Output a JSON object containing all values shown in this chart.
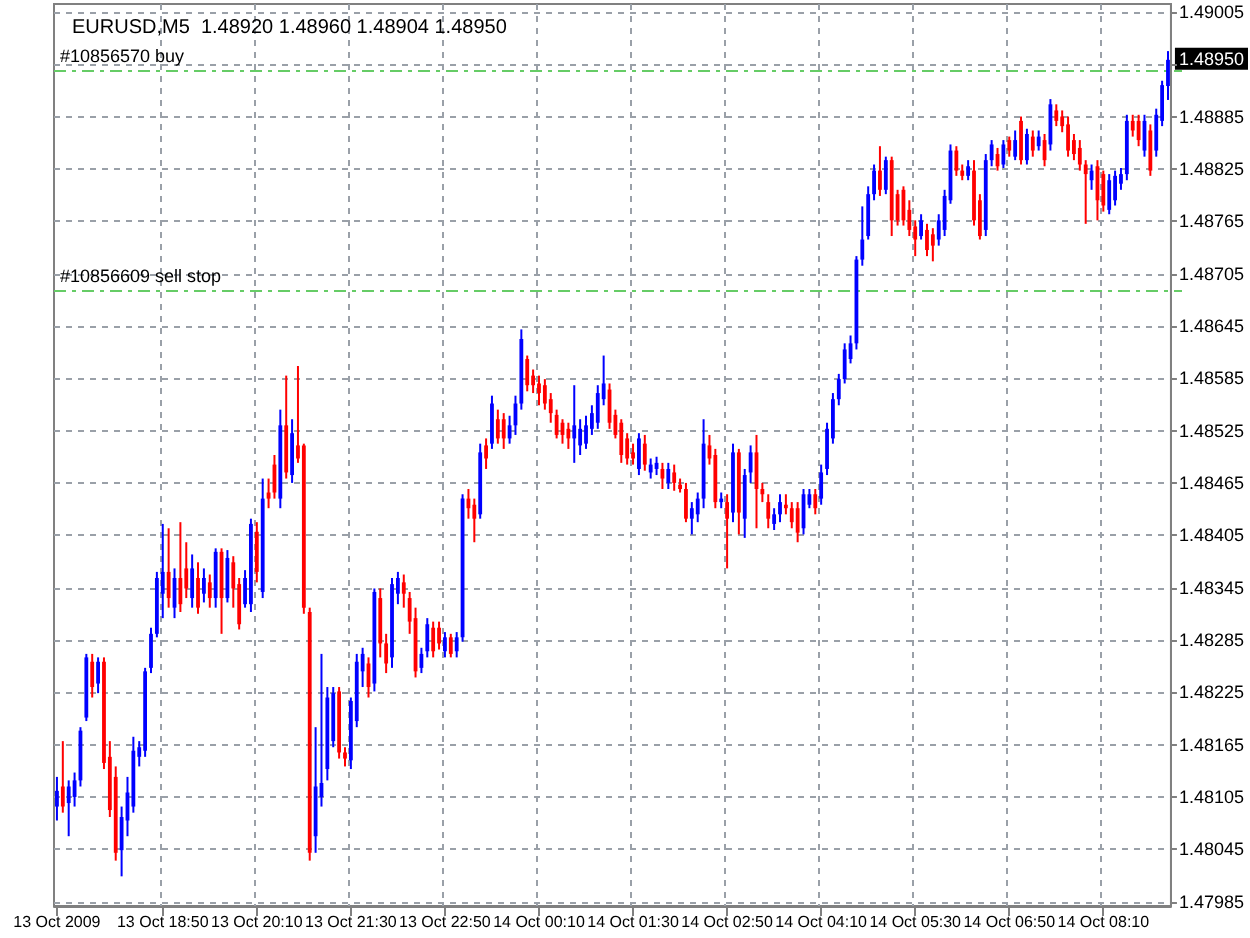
{
  "chart_data": {
    "type": "candlestick",
    "title": "EURUSD,M5  1.48920 1.48960 1.48904 1.48950",
    "categories": [
      "13 Oct 2009",
      null,
      null,
      null,
      null,
      null,
      null,
      null,
      null,
      null,
      null,
      null,
      null,
      null,
      null,
      null,
      null,
      null,
      "13 Oct 18:50",
      null,
      null,
      null,
      null,
      null,
      null,
      null,
      null,
      null,
      null,
      null,
      null,
      null,
      null,
      null,
      "13 Oct 20:10",
      null,
      null,
      null,
      null,
      null,
      null,
      null,
      null,
      null,
      null,
      null,
      null,
      null,
      null,
      null,
      "13 Oct 21:30",
      null,
      null,
      null,
      null,
      null,
      null,
      null,
      null,
      null,
      null,
      null,
      null,
      null,
      null,
      null,
      "13 Oct 22:50",
      null,
      null,
      null,
      null,
      null,
      null,
      null,
      null,
      null,
      null,
      null,
      null,
      null,
      null,
      null,
      "14 Oct 00:10",
      null,
      null,
      null,
      null,
      null,
      null,
      null,
      null,
      null,
      null,
      null,
      null,
      null,
      null,
      null,
      "14 Oct 01:30",
      null,
      null,
      null,
      null,
      null,
      null,
      null,
      null,
      null,
      null,
      null,
      null,
      null,
      null,
      null,
      "14 Oct 02:50",
      null,
      null,
      null,
      null,
      null,
      null,
      null,
      null,
      null,
      null,
      null,
      null,
      null,
      null,
      null,
      "14 Oct 04:10",
      null,
      null,
      null,
      null,
      null,
      null,
      null,
      null,
      null,
      null,
      null,
      null,
      null,
      null,
      null,
      "14 Oct 05:30",
      null,
      null,
      null,
      null,
      null,
      null,
      null,
      null,
      null,
      null,
      null,
      null,
      null,
      null,
      null,
      "14 Oct 06:50",
      null,
      null,
      null,
      null,
      null,
      null,
      null,
      null,
      null,
      null,
      null,
      null,
      null,
      null,
      null,
      "14 Oct 08:10",
      null,
      null,
      null,
      null,
      null,
      null,
      null,
      null,
      null,
      null,
      null
    ],
    "ohlc": [
      [
        1.48094,
        1.48128,
        1.48078,
        1.48112
      ],
      [
        1.48117,
        1.48169,
        1.48087,
        1.48094
      ],
      [
        1.48098,
        1.48124,
        1.4806,
        1.48117
      ],
      [
        1.48105,
        1.48133,
        1.48094,
        1.48124
      ],
      [
        1.48124,
        1.48185,
        1.48117,
        1.48181
      ],
      [
        1.48196,
        1.48269,
        1.48192,
        1.48265
      ],
      [
        1.4826,
        1.48269,
        1.48219,
        1.48231
      ],
      [
        1.48235,
        1.48265,
        1.48224,
        1.4826
      ],
      [
        1.4826,
        1.48265,
        1.48137,
        1.48144
      ],
      [
        1.48151,
        1.48169,
        1.48082,
        1.4809
      ],
      [
        1.48128,
        1.4814,
        1.48032,
        1.48041
      ],
      [
        1.48044,
        1.48094,
        1.48014,
        1.48082
      ],
      [
        1.48078,
        1.48128,
        1.4806,
        1.4811
      ],
      [
        1.48094,
        1.48174,
        1.48087,
        1.48158
      ],
      [
        1.48151,
        1.48169,
        1.4814,
        1.48162
      ],
      [
        1.48158,
        1.48253,
        1.48151,
        1.48249
      ],
      [
        1.48253,
        1.48299,
        1.48247,
        1.48292
      ],
      [
        1.48292,
        1.48363,
        1.48288,
        1.48356
      ],
      [
        1.48338,
        1.48418,
        1.4831,
        1.48363
      ],
      [
        1.48363,
        1.48413,
        1.48322,
        1.48333
      ],
      [
        1.48322,
        1.48367,
        1.4831,
        1.48356
      ],
      [
        1.48356,
        1.4842,
        1.48317,
        1.48326
      ],
      [
        1.48367,
        1.48397,
        1.48333,
        1.48344
      ],
      [
        1.48333,
        1.48383,
        1.48322,
        1.48367
      ],
      [
        1.48356,
        1.48374,
        1.48315,
        1.48322
      ],
      [
        1.48338,
        1.48367,
        1.48328,
        1.48356
      ],
      [
        1.48351,
        1.4836,
        1.48322,
        1.48333
      ],
      [
        1.48333,
        1.4839,
        1.48322,
        1.48386
      ],
      [
        1.48386,
        1.4839,
        1.48292,
        1.48333
      ],
      [
        1.48333,
        1.48388,
        1.48328,
        1.48379
      ],
      [
        1.48374,
        1.48381,
        1.48322,
        1.48344
      ],
      [
        1.48349,
        1.48356,
        1.48297,
        1.48303
      ],
      [
        1.48326,
        1.48365,
        1.48322,
        1.48356
      ],
      [
        1.48326,
        1.48424,
        1.48317,
        1.48418
      ],
      [
        1.48409,
        1.4842,
        1.48351,
        1.48363
      ],
      [
        1.4834,
        1.4847,
        1.48333,
        1.48447
      ],
      [
        1.48454,
        1.4847,
        1.48436,
        1.48447
      ],
      [
        1.48486,
        1.48497,
        1.48447,
        1.48454
      ],
      [
        1.48447,
        1.48549,
        1.48436,
        1.48531
      ],
      [
        1.48531,
        1.48588,
        1.4847,
        1.48477
      ],
      [
        1.48474,
        1.48538,
        1.48465,
        1.48522
      ],
      [
        1.48508,
        1.48599,
        1.48488,
        1.48493
      ],
      [
        1.48508,
        1.4851,
        1.48315,
        1.48322
      ],
      [
        1.48317,
        1.48322,
        1.48032,
        1.48041
      ],
      [
        1.4806,
        1.48185,
        1.48041,
        1.48117
      ],
      [
        1.48105,
        1.48269,
        1.48094,
        1.48121
      ],
      [
        1.48137,
        1.48231,
        1.48124,
        1.48219
      ],
      [
        1.48169,
        1.48231,
        1.48162,
        1.48224
      ],
      [
        1.48226,
        1.48231,
        1.48149,
        1.48156
      ],
      [
        1.48156,
        1.48162,
        1.4814,
        1.48149
      ],
      [
        1.48147,
        1.48219,
        1.48137,
        1.48215
      ],
      [
        1.48192,
        1.48269,
        1.48185,
        1.4826
      ],
      [
        1.48249,
        1.48276,
        1.48231,
        1.48269
      ],
      [
        1.48258,
        1.48265,
        1.48219,
        1.48231
      ],
      [
        1.48235,
        1.48344,
        1.48226,
        1.4834
      ],
      [
        1.48333,
        1.48344,
        1.48265,
        1.48281
      ],
      [
        1.48281,
        1.48292,
        1.48247,
        1.48258
      ],
      [
        1.48265,
        1.48356,
        1.48253,
        1.48349
      ],
      [
        1.48338,
        1.48363,
        1.48326,
        1.48356
      ],
      [
        1.48351,
        1.4836,
        1.48322,
        1.48338
      ],
      [
        1.48333,
        1.4834,
        1.48292,
        1.48306
      ],
      [
        1.4831,
        1.48322,
        1.48242,
        1.48249
      ],
      [
        1.48253,
        1.48276,
        1.48247,
        1.48269
      ],
      [
        1.48272,
        1.4831,
        1.48265,
        1.48303
      ],
      [
        1.48299,
        1.48306,
        1.48265,
        1.48272
      ],
      [
        1.48299,
        1.48306,
        1.48274,
        1.48281
      ],
      [
        1.48272,
        1.48294,
        1.48265,
        1.48288
      ],
      [
        1.48288,
        1.48292,
        1.48265,
        1.48269
      ],
      [
        1.48272,
        1.48294,
        1.48265,
        1.48288
      ],
      [
        1.48288,
        1.48452,
        1.48283,
        1.48447
      ],
      [
        1.48447,
        1.48458,
        1.48424,
        1.48436
      ],
      [
        1.4844,
        1.48447,
        1.48397,
        1.48424
      ],
      [
        1.48429,
        1.4851,
        1.48424,
        1.485
      ],
      [
        1.48508,
        1.48516,
        1.48481,
        1.48493
      ],
      [
        1.4851,
        1.48565,
        1.48504,
        1.48556
      ],
      [
        1.48538,
        1.48549,
        1.4851,
        1.48516
      ],
      [
        1.48538,
        1.48545,
        1.48504,
        1.48516
      ],
      [
        1.48516,
        1.48542,
        1.4851,
        1.48531
      ],
      [
        1.48531,
        1.48565,
        1.4852,
        1.48556
      ],
      [
        1.48556,
        1.48641,
        1.48549,
        1.4863
      ],
      [
        1.48607,
        1.48611,
        1.4857,
        1.48577
      ],
      [
        1.48588,
        1.48595,
        1.48568,
        1.48577
      ],
      [
        1.48579,
        1.48588,
        1.48554,
        1.48568
      ],
      [
        1.48577,
        1.48584,
        1.48549,
        1.48556
      ],
      [
        1.48561,
        1.48568,
        1.48534,
        1.48545
      ],
      [
        1.48543,
        1.48549,
        1.48516,
        1.4852
      ],
      [
        1.48534,
        1.48538,
        1.4851,
        1.4852
      ],
      [
        1.48527,
        1.48534,
        1.48504,
        1.48516
      ],
      [
        1.48516,
        1.48577,
        1.48488,
        1.48531
      ],
      [
        1.48508,
        1.48538,
        1.48497,
        1.48527
      ],
      [
        1.4851,
        1.48542,
        1.48504,
        1.48531
      ],
      [
        1.48527,
        1.48554,
        1.4852,
        1.48545
      ],
      [
        1.48534,
        1.48577,
        1.48527,
        1.48568
      ],
      [
        1.48561,
        1.48611,
        1.48554,
        1.48579
      ],
      [
        1.48572,
        1.48579,
        1.48527,
        1.48534
      ],
      [
        1.48543,
        1.48549,
        1.48516,
        1.4852
      ],
      [
        1.48534,
        1.48538,
        1.48488,
        1.48497
      ],
      [
        1.48516,
        1.48522,
        1.48486,
        1.48493
      ],
      [
        1.485,
        1.4851,
        1.48486,
        1.48493
      ],
      [
        1.48481,
        1.48522,
        1.48474,
        1.48516
      ],
      [
        1.4851,
        1.4852,
        1.48479,
        1.48486
      ],
      [
        1.48477,
        1.48493,
        1.4847,
        1.48486
      ],
      [
        1.48481,
        1.48495,
        1.48474,
        1.48488
      ],
      [
        1.48481,
        1.48488,
        1.48458,
        1.4847
      ],
      [
        1.48465,
        1.48488,
        1.48458,
        1.48481
      ],
      [
        1.48477,
        1.48486,
        1.48456,
        1.48465
      ],
      [
        1.48463,
        1.4847,
        1.48454,
        1.48458
      ],
      [
        1.48458,
        1.48465,
        1.4842,
        1.48424
      ],
      [
        1.48424,
        1.48443,
        1.48406,
        1.48436
      ],
      [
        1.48429,
        1.48454,
        1.4842,
        1.48447
      ],
      [
        1.48447,
        1.48538,
        1.48436,
        1.4851
      ],
      [
        1.48508,
        1.4852,
        1.48486,
        1.48493
      ],
      [
        1.48497,
        1.48504,
        1.48436,
        1.48443
      ],
      [
        1.48443,
        1.48454,
        1.48436,
        1.48447
      ],
      [
        1.48443,
        1.48452,
        1.48367,
        1.48424
      ],
      [
        1.48431,
        1.4851,
        1.4842,
        1.485
      ],
      [
        1.485,
        1.48504,
        1.48406,
        1.48431
      ],
      [
        1.48424,
        1.48481,
        1.48402,
        1.48474
      ],
      [
        1.48477,
        1.48508,
        1.48465,
        1.485
      ],
      [
        1.485,
        1.4852,
        1.48413,
        1.48458
      ],
      [
        1.48458,
        1.48465,
        1.48443,
        1.48452
      ],
      [
        1.48443,
        1.48452,
        1.48413,
        1.48424
      ],
      [
        1.48418,
        1.48436,
        1.48411,
        1.48429
      ],
      [
        1.48429,
        1.48452,
        1.4842,
        1.48443
      ],
      [
        1.4844,
        1.48452,
        1.48429,
        1.48436
      ],
      [
        1.48436,
        1.48443,
        1.48413,
        1.4842
      ],
      [
        1.48436,
        1.48443,
        1.48397,
        1.48408
      ],
      [
        1.48413,
        1.48458,
        1.48406,
        1.48452
      ],
      [
        1.4844,
        1.48458,
        1.48436,
        1.48452
      ],
      [
        1.48452,
        1.48458,
        1.48429,
        1.48436
      ],
      [
        1.48447,
        1.48486,
        1.4844,
        1.48477
      ],
      [
        1.48481,
        1.48534,
        1.48474,
        1.48527
      ],
      [
        1.48516,
        1.48568,
        1.4851,
        1.48561
      ],
      [
        1.48561,
        1.4859,
        1.48554,
        1.48584
      ],
      [
        1.48584,
        1.48625,
        1.48579,
        1.48618
      ],
      [
        1.48607,
        1.48634,
        1.48602,
        1.48625
      ],
      [
        1.48625,
        1.48725,
        1.48618,
        1.48721
      ],
      [
        1.48721,
        1.48782,
        1.48714,
        1.48744
      ],
      [
        1.48748,
        1.48805,
        1.48744,
        1.48796
      ],
      [
        1.48796,
        1.4883,
        1.48789,
        1.48823
      ],
      [
        1.48823,
        1.48851,
        1.48794,
        1.48801
      ],
      [
        1.48801,
        1.48839,
        1.48796,
        1.48835
      ],
      [
        1.48835,
        1.48839,
        1.48748,
        1.48766
      ],
      [
        1.48796,
        1.48801,
        1.4876,
        1.48766
      ],
      [
        1.48801,
        1.48805,
        1.4876,
        1.48766
      ],
      [
        1.48778,
        1.48789,
        1.48748,
        1.48755
      ],
      [
        1.48759,
        1.48766,
        1.48725,
        1.48744
      ],
      [
        1.48748,
        1.48773,
        1.48744,
        1.48766
      ],
      [
        1.48755,
        1.48762,
        1.48725,
        1.48732
      ],
      [
        1.4875,
        1.48757,
        1.48719,
        1.48737
      ],
      [
        1.48744,
        1.48773,
        1.48737,
        1.48766
      ],
      [
        1.48755,
        1.48801,
        1.48748,
        1.48794
      ],
      [
        1.48789,
        1.48853,
        1.48785,
        1.48846
      ],
      [
        1.48846,
        1.48851,
        1.48817,
        1.48823
      ],
      [
        1.48823,
        1.4883,
        1.48812,
        1.48817
      ],
      [
        1.48817,
        1.48835,
        1.48812,
        1.48828
      ],
      [
        1.48823,
        1.48835,
        1.4876,
        1.48766
      ],
      [
        1.48789,
        1.48796,
        1.48744,
        1.48748
      ],
      [
        1.48755,
        1.48842,
        1.48748,
        1.48835
      ],
      [
        1.48835,
        1.48858,
        1.48828,
        1.48853
      ],
      [
        1.48842,
        1.48849,
        1.48823,
        1.48828
      ],
      [
        1.4883,
        1.48858,
        1.48826,
        1.48853
      ],
      [
        1.48858,
        1.48862,
        1.48839,
        1.48846
      ],
      [
        1.48839,
        1.48869,
        1.48835,
        1.48858
      ],
      [
        1.4888,
        1.48885,
        1.4883,
        1.48835
      ],
      [
        1.48835,
        1.48871,
        1.4883,
        1.48865
      ],
      [
        1.48862,
        1.48869,
        1.48839,
        1.48846
      ],
      [
        1.48851,
        1.48869,
        1.48846,
        1.48862
      ],
      [
        1.48858,
        1.48865,
        1.48828,
        1.48835
      ],
      [
        1.48853,
        1.48905,
        1.48846,
        1.48899
      ],
      [
        1.48892,
        1.48899,
        1.48874,
        1.4888
      ],
      [
        1.48885,
        1.48892,
        1.48867,
        1.48874
      ],
      [
        1.48876,
        1.48885,
        1.48839,
        1.48846
      ],
      [
        1.48858,
        1.48865,
        1.48835,
        1.48842
      ],
      [
        1.48849,
        1.48858,
        1.48823,
        1.4883
      ],
      [
        1.4883,
        1.48835,
        1.48762,
        1.48819
      ],
      [
        1.48812,
        1.4883,
        1.48801,
        1.48823
      ],
      [
        1.48828,
        1.48835,
        1.48766,
        1.48789
      ],
      [
        1.48819,
        1.48823,
        1.48776,
        1.48783
      ],
      [
        1.48778,
        1.48819,
        1.48773,
        1.48812
      ],
      [
        1.48789,
        1.48823,
        1.48783,
        1.48817
      ],
      [
        1.48808,
        1.48826,
        1.48801,
        1.48819
      ],
      [
        1.48819,
        1.48887,
        1.48812,
        1.4888
      ],
      [
        1.4888,
        1.48887,
        1.48862,
        1.48869
      ],
      [
        1.4888,
        1.48887,
        1.48851,
        1.48858
      ],
      [
        1.48846,
        1.48887,
        1.48839,
        1.4888
      ],
      [
        1.48869,
        1.48876,
        1.48817,
        1.48823
      ],
      [
        1.48846,
        1.48894,
        1.48839,
        1.48887
      ],
      [
        1.4888,
        1.48926,
        1.48874,
        1.48921
      ],
      [
        1.4892,
        1.4896,
        1.48904,
        1.4895
      ]
    ],
    "colors": [
      "#0000ff",
      "#ff0000",
      "#0000ff",
      "#0000ff",
      "#0000ff",
      "#0000ff",
      "#ff0000",
      "#0000ff",
      "#ff0000",
      "#ff0000",
      "#ff0000",
      "#0000ff",
      "#0000ff",
      "#0000ff",
      "#0000ff",
      "#0000ff",
      "#0000ff",
      "#0000ff",
      "#0000ff",
      "#ff0000",
      "#0000ff",
      "#ff0000",
      "#ff0000",
      "#0000ff",
      "#ff0000",
      "#0000ff",
      "#ff0000",
      "#0000ff",
      "#ff0000",
      "#0000ff",
      "#ff0000",
      "#ff0000",
      "#0000ff",
      "#0000ff",
      "#ff0000",
      "#0000ff",
      "#ff0000",
      "#ff0000",
      "#0000ff",
      "#ff0000",
      "#0000ff",
      "#ff0000",
      "#ff0000",
      "#ff0000",
      "#0000ff",
      "#0000ff",
      "#0000ff",
      "#0000ff",
      "#ff0000",
      "#ff0000",
      "#0000ff",
      "#0000ff",
      "#0000ff",
      "#ff0000",
      "#0000ff",
      "#ff0000",
      "#ff0000",
      "#0000ff",
      "#0000ff",
      "#ff0000",
      "#ff0000",
      "#ff0000",
      "#0000ff",
      "#0000ff",
      "#ff0000",
      "#ff0000",
      "#0000ff",
      "#ff0000",
      "#0000ff",
      "#0000ff",
      "#ff0000",
      "#ff0000",
      "#0000ff",
      "#ff0000",
      "#0000ff",
      "#ff0000",
      "#ff0000",
      "#0000ff",
      "#0000ff",
      "#0000ff",
      "#ff0000",
      "#ff0000",
      "#ff0000",
      "#ff0000",
      "#ff0000",
      "#ff0000",
      "#ff0000",
      "#ff0000",
      "#0000ff",
      "#0000ff",
      "#0000ff",
      "#0000ff",
      "#0000ff",
      "#0000ff",
      "#ff0000",
      "#ff0000",
      "#ff0000",
      "#ff0000",
      "#ff0000",
      "#0000ff",
      "#ff0000",
      "#0000ff",
      "#0000ff",
      "#ff0000",
      "#0000ff",
      "#ff0000",
      "#ff0000",
      "#ff0000",
      "#0000ff",
      "#0000ff",
      "#0000ff",
      "#ff0000",
      "#ff0000",
      "#0000ff",
      "#ff0000",
      "#0000ff",
      "#ff0000",
      "#0000ff",
      "#0000ff",
      "#ff0000",
      "#ff0000",
      "#ff0000",
      "#0000ff",
      "#0000ff",
      "#ff0000",
      "#ff0000",
      "#ff0000",
      "#0000ff",
      "#0000ff",
      "#ff0000",
      "#0000ff",
      "#0000ff",
      "#0000ff",
      "#0000ff",
      "#0000ff",
      "#0000ff",
      "#0000ff",
      "#0000ff",
      "#0000ff",
      "#0000ff",
      "#ff0000",
      "#0000ff",
      "#ff0000",
      "#ff0000",
      "#ff0000",
      "#ff0000",
      "#ff0000",
      "#0000ff",
      "#ff0000",
      "#ff0000",
      "#0000ff",
      "#0000ff",
      "#0000ff",
      "#ff0000",
      "#ff0000",
      "#0000ff",
      "#ff0000",
      "#ff0000",
      "#0000ff",
      "#0000ff",
      "#ff0000",
      "#0000ff",
      "#ff0000",
      "#0000ff",
      "#ff0000",
      "#0000ff",
      "#ff0000",
      "#0000ff",
      "#ff0000",
      "#0000ff",
      "#ff0000",
      "#ff0000",
      "#ff0000",
      "#ff0000",
      "#ff0000",
      "#ff0000",
      "#0000ff",
      "#ff0000",
      "#ff0000",
      "#0000ff",
      "#0000ff",
      "#0000ff",
      "#0000ff",
      "#ff0000",
      "#ff0000",
      "#0000ff",
      "#ff0000",
      "#0000ff",
      "#0000ff",
      "#0000ff"
    ],
    "ylim": [
      1.4798,
      1.49014
    ],
    "yticks": [
      1.47985,
      1.48045,
      1.48105,
      1.48165,
      1.48225,
      1.48285,
      1.48345,
      1.48405,
      1.48465,
      1.48525,
      1.48585,
      1.48645,
      1.48705,
      1.48765,
      1.48825,
      1.48885,
      {
        "value": 1.48945,
        "label": null
      },
      1.49005
    ],
    "grid": true,
    "ref_lines": [
      {
        "axis": "y",
        "value": 1.48938,
        "label": "#10856570 buy",
        "color": "#66cc66",
        "line_style": "dashed"
      },
      {
        "axis": "y",
        "value": 1.48687,
        "label": "#10856609 sell stop",
        "color": "#66cc66",
        "line_style": "dashed"
      }
    ],
    "annotations": [
      {
        "text": "1.48950",
        "y": 1.4895
      }
    ]
  }
}
